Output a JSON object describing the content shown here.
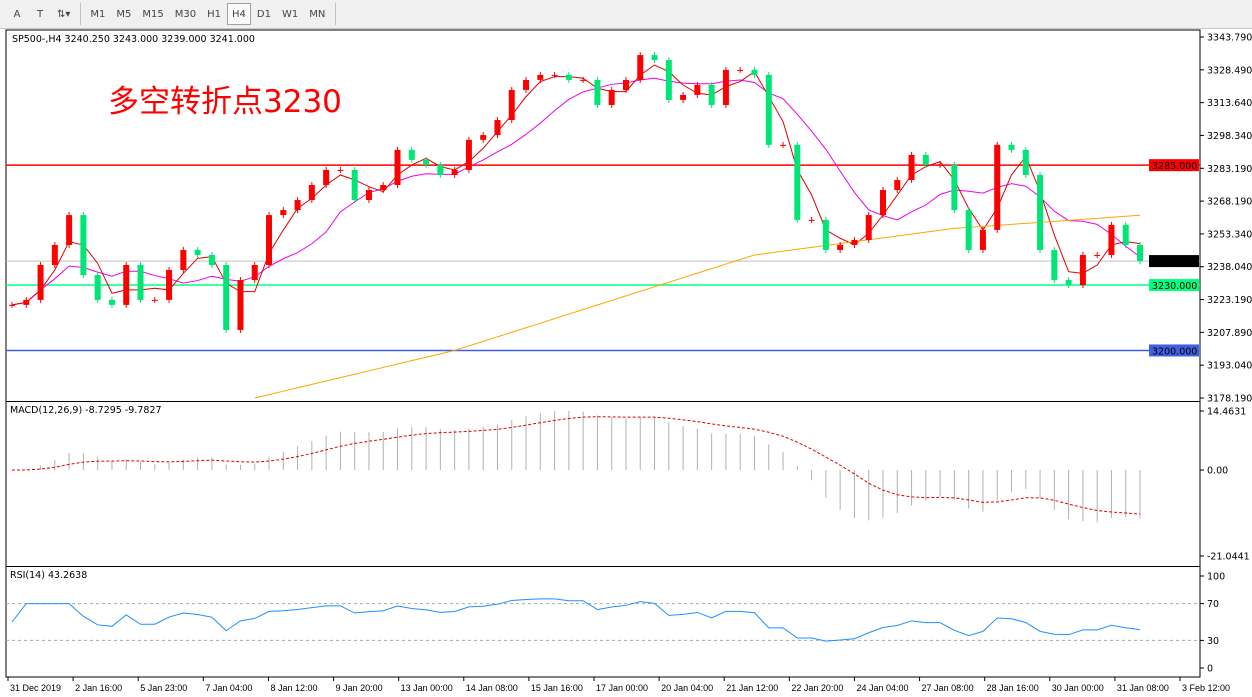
{
  "toolbar": {
    "tools": [
      {
        "name": "text-tool",
        "label": "A"
      },
      {
        "name": "text-label-tool",
        "label": "T"
      },
      {
        "name": "arrows-tool",
        "label": "⇅▾"
      }
    ],
    "timeframes": [
      "M1",
      "M5",
      "M15",
      "M30",
      "H1",
      "H4",
      "D1",
      "W1",
      "MN"
    ],
    "active_timeframe": "H4"
  },
  "chart_data": {
    "type": "candlestick",
    "title": "SP500-,H4  3240.250 3243.000 3239.000 3241.000",
    "annotation": "多空转折点3230",
    "ylim": [
      3178.19,
      3343.79
    ],
    "y_ticks": [
      "3343.790",
      "3328.490",
      "3313.640",
      "3298.340",
      "3283.190",
      "3268.190",
      "3253.340",
      "3238.040",
      "3223.190",
      "3207.890",
      "3193.040",
      "3178.190"
    ],
    "x_ticks": [
      "31 Dec 2019",
      "2 Jan 16:00",
      "5 Jan 23:00",
      "7 Jan 04:00",
      "8 Jan 12:00",
      "9 Jan 20:00",
      "13 Jan 00:00",
      "14 Jan 08:00",
      "15 Jan 16:00",
      "17 Jan 00:00",
      "20 Jan 04:00",
      "21 Jan 12:00",
      "22 Jan 20:00",
      "24 Jan 04:00",
      "27 Jan 08:00",
      "28 Jan 16:00",
      "30 Jan 00:00",
      "31 Jan 08:00",
      "3 Feb 12:00"
    ],
    "closes": [
      3220.9,
      3223.2,
      3239.2,
      3248.4,
      3262.1,
      3234.6,
      3223.2,
      3220.9,
      3239.2,
      3223.2,
      3223.2,
      3236.9,
      3246.1,
      3243.8,
      3239.2,
      3209.4,
      3232.3,
      3239.2,
      3262.1,
      3264.4,
      3269.0,
      3275.9,
      3282.8,
      3282.8,
      3269.0,
      3273.6,
      3275.9,
      3292.0,
      3287.4,
      3285.1,
      3280.5,
      3282.8,
      3296.6,
      3298.8,
      3305.7,
      3319.5,
      3324.1,
      3326.4,
      3326.4,
      3324.1,
      3324.1,
      3312.6,
      3319.5,
      3324.1,
      3335.5,
      3333.2,
      3314.9,
      3317.2,
      3321.8,
      3312.6,
      3328.7,
      3328.7,
      3326.4,
      3294.3,
      3294.3,
      3259.9,
      3259.9,
      3246.1,
      3248.4,
      3250.7,
      3262.1,
      3273.6,
      3278.2,
      3289.7,
      3285.1,
      3285.1,
      3264.4,
      3246.1,
      3255.3,
      3294.3,
      3292.0,
      3280.5,
      3246.1,
      3232.3,
      3230.0,
      3243.8,
      3243.8,
      3257.6,
      3248.4,
      3241.0
    ],
    "ma_long": [
      [
        17,
        3178.2
      ],
      [
        31,
        3200.0
      ],
      [
        52,
        3243.8
      ],
      [
        66,
        3256.0
      ],
      [
        79,
        3262.0
      ]
    ],
    "levels": [
      {
        "value": 3285.0,
        "label": "3285.000",
        "color": "#ff0000"
      },
      {
        "value": 3241.0,
        "label": "3241.000",
        "color": "#000000",
        "line": "#c0c0c0"
      },
      {
        "value": 3230.0,
        "label": "3230.000",
        "color": "#00ff7f"
      },
      {
        "value": 3200.0,
        "label": "3200.000",
        "color": "#4060e0"
      }
    ],
    "colors": {
      "up": "#ff0000",
      "down": "#00e676",
      "ma_fast": "#e00000",
      "ma_mid": "#ee00ee",
      "ma_long": "#ffa500",
      "macd_signal": "#e00000",
      "macd_hist": "#b0b0b0",
      "rsi": "#1e90ff"
    },
    "macd": {
      "title": "MACD(12,26,9) -8.7295 -9.7827",
      "max_label": "14.4631",
      "zero_label": "0.00",
      "min_label": "-21.0441",
      "range": [
        -21.0441,
        14.4631
      ]
    },
    "rsi": {
      "title": "RSI(14) 43.2638",
      "ticks": [
        "100",
        "70",
        "30",
        "0"
      ]
    }
  }
}
